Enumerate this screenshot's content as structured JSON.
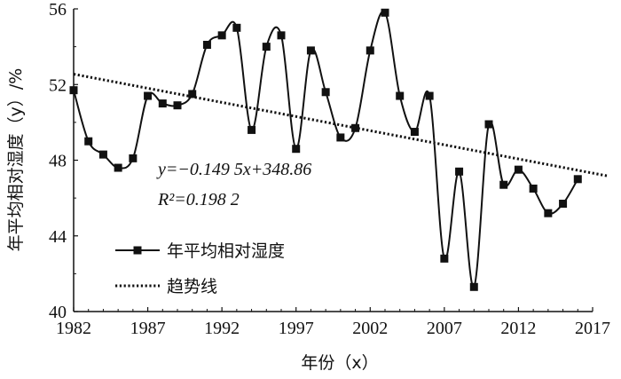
{
  "chart_data": {
    "type": "line",
    "xlabel": "年份（x）",
    "ylabel": "年平均相对湿度（y）/%",
    "xlim": [
      1982,
      2017
    ],
    "ylim": [
      40,
      56
    ],
    "x_ticks": [
      "1982",
      "1987",
      "1992",
      "1997",
      "2002",
      "2007",
      "2012",
      "2017"
    ],
    "y_ticks": [
      "40",
      "44",
      "48",
      "52",
      "56"
    ],
    "grid": false,
    "legend_position": "bottom-left",
    "series": [
      {
        "name": "年平均相对湿度",
        "style": "solid-smooth-with-square-markers",
        "x": [
          1982,
          1983,
          1984,
          1985,
          1986,
          1987,
          1988,
          1989,
          1990,
          1991,
          1992,
          1993,
          1994,
          1995,
          1996,
          1997,
          1998,
          1999,
          2000,
          2001,
          2002,
          2003,
          2004,
          2005,
          2006,
          2007,
          2008,
          2009,
          2010,
          2011,
          2012,
          2013,
          2014,
          2015,
          2016
        ],
        "values": [
          51.7,
          49.0,
          48.3,
          47.6,
          48.1,
          51.4,
          51.0,
          50.9,
          51.5,
          54.1,
          54.6,
          55.0,
          49.6,
          54.0,
          54.6,
          48.6,
          53.8,
          51.6,
          49.2,
          49.7,
          53.8,
          55.8,
          51.4,
          49.5,
          51.4,
          42.8,
          47.4,
          41.3,
          49.9,
          46.7,
          47.5,
          46.5,
          45.2,
          45.7,
          47.0
        ]
      },
      {
        "name": "趋势线",
        "style": "dotted",
        "slope": -0.1495,
        "intercept": 348.86,
        "x_range": [
          1982,
          2017
        ]
      }
    ],
    "annotations": {
      "equation": "y=−0.149 5x+348.86",
      "r_squared": "R²=0.198 2"
    }
  },
  "colors": {
    "line": "#111111",
    "background": "#ffffff"
  }
}
